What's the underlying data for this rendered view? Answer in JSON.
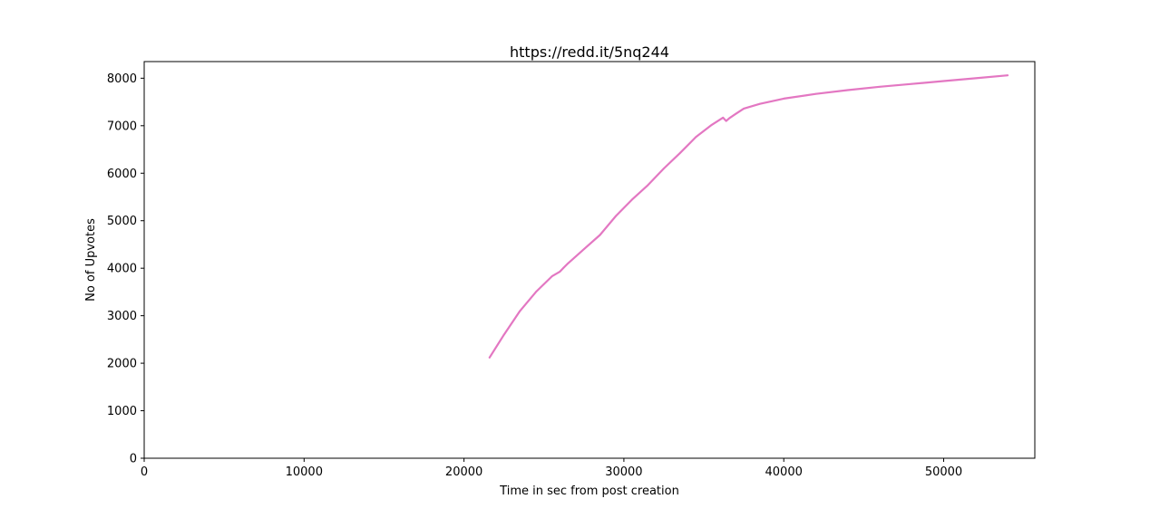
{
  "chart_data": {
    "type": "line",
    "title": "https://redd.it/5nq244",
    "xlabel": "Time in sec from post creation",
    "ylabel": "No of Upvotes",
    "xlim": [
      0,
      55700
    ],
    "ylim": [
      0,
      8350
    ],
    "xticks": [
      0,
      10000,
      20000,
      30000,
      40000,
      50000
    ],
    "xtick_labels": [
      "0",
      "10000",
      "20000",
      "30000",
      "40000",
      "50000"
    ],
    "yticks": [
      0,
      1000,
      2000,
      3000,
      4000,
      5000,
      6000,
      7000,
      8000
    ],
    "ytick_labels": [
      "0",
      "1000",
      "2000",
      "3000",
      "4000",
      "5000",
      "6000",
      "7000",
      "8000"
    ],
    "grid": false,
    "series": [
      {
        "color": "#e377c2",
        "x": [
          21600,
          22500,
          23500,
          24500,
          25500,
          26000,
          26200,
          26500,
          27000,
          27500,
          28500,
          29500,
          30500,
          31500,
          32500,
          33500,
          34500,
          35500,
          36200,
          36400,
          36600,
          37000,
          37500,
          38500,
          40000,
          42000,
          44000,
          46000,
          48000,
          50000,
          52000,
          54000
        ],
        "y": [
          2120,
          2600,
          3100,
          3500,
          3830,
          3930,
          4000,
          4100,
          4250,
          4400,
          4700,
          5100,
          5440,
          5750,
          6100,
          6420,
          6760,
          7020,
          7170,
          7100,
          7160,
          7250,
          7360,
          7460,
          7570,
          7670,
          7750,
          7820,
          7880,
          7940,
          8000,
          8060
        ]
      }
    ]
  }
}
